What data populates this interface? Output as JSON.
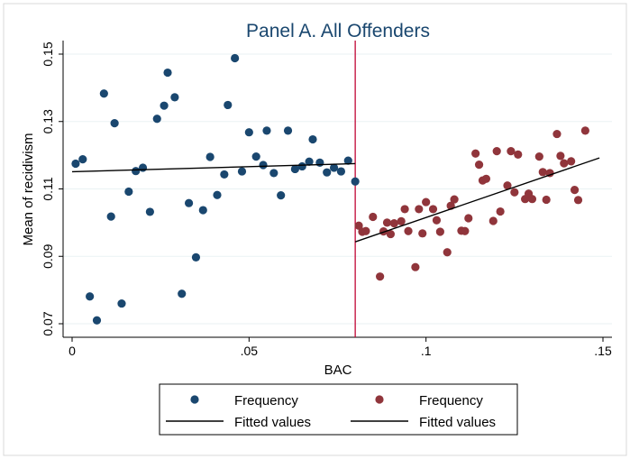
{
  "chart_data": {
    "type": "scatter",
    "title": "Panel A. All Offenders",
    "xlabel": "BAC",
    "ylabel": "Mean of recidivism",
    "xlim": [
      0,
      0.15
    ],
    "ylim": [
      0.07,
      0.15
    ],
    "x_ticks": [
      0,
      0.05,
      0.1,
      0.15
    ],
    "x_tick_labels": [
      "0",
      ".05",
      ".1",
      ".15"
    ],
    "y_ticks": [
      0.07,
      0.09,
      0.11,
      0.13,
      0.15
    ],
    "y_tick_labels": [
      "0.07",
      "0.09",
      "0.11",
      "0.13",
      "0.15"
    ],
    "threshold": 0.08,
    "threshold_color": "#c10534",
    "grid": true,
    "legend_position": "bottom",
    "series": [
      {
        "name": "Frequency",
        "kind": "scatter",
        "color": "#1a476f",
        "points": [
          [
            0.001,
            0.1175
          ],
          [
            0.003,
            0.1188
          ],
          [
            0.005,
            0.0781
          ],
          [
            0.007,
            0.071
          ],
          [
            0.009,
            0.1383
          ],
          [
            0.011,
            0.1018
          ],
          [
            0.012,
            0.1295
          ],
          [
            0.014,
            0.076
          ],
          [
            0.016,
            0.1092
          ],
          [
            0.018,
            0.1153
          ],
          [
            0.02,
            0.1163
          ],
          [
            0.022,
            0.1032
          ],
          [
            0.024,
            0.1308
          ],
          [
            0.026,
            0.1347
          ],
          [
            0.027,
            0.1445
          ],
          [
            0.029,
            0.1372
          ],
          [
            0.031,
            0.0789
          ],
          [
            0.033,
            0.1058
          ],
          [
            0.035,
            0.0897
          ],
          [
            0.037,
            0.1037
          ],
          [
            0.039,
            0.1195
          ],
          [
            0.041,
            0.1082
          ],
          [
            0.043,
            0.1143
          ],
          [
            0.044,
            0.1349
          ],
          [
            0.046,
            0.1488
          ],
          [
            0.048,
            0.1152
          ],
          [
            0.05,
            0.1268
          ],
          [
            0.052,
            0.1196
          ],
          [
            0.054,
            0.1171
          ],
          [
            0.055,
            0.1273
          ],
          [
            0.057,
            0.1147
          ],
          [
            0.059,
            0.1081
          ],
          [
            0.061,
            0.1273
          ],
          [
            0.063,
            0.1159
          ],
          [
            0.065,
            0.1167
          ],
          [
            0.067,
            0.1181
          ],
          [
            0.068,
            0.1247
          ],
          [
            0.07,
            0.1178
          ],
          [
            0.072,
            0.1149
          ],
          [
            0.074,
            0.1163
          ],
          [
            0.076,
            0.1152
          ],
          [
            0.078,
            0.1184
          ],
          [
            0.08,
            0.1122
          ]
        ]
      },
      {
        "name": "Fitted values",
        "kind": "line",
        "color": "#000000",
        "points": [
          [
            0.0,
            0.1151
          ],
          [
            0.08,
            0.1175
          ]
        ]
      },
      {
        "name": "Frequency",
        "kind": "scatter",
        "color": "#90353b",
        "points": [
          [
            0.081,
            0.0991
          ],
          [
            0.082,
            0.0973
          ],
          [
            0.083,
            0.0975
          ],
          [
            0.085,
            0.1017
          ],
          [
            0.087,
            0.084
          ],
          [
            0.088,
            0.0974
          ],
          [
            0.089,
            0.1
          ],
          [
            0.09,
            0.0966
          ],
          [
            0.091,
            0.0998
          ],
          [
            0.093,
            0.1004
          ],
          [
            0.094,
            0.104
          ],
          [
            0.095,
            0.0975
          ],
          [
            0.097,
            0.0868
          ],
          [
            0.098,
            0.104
          ],
          [
            0.099,
            0.0968
          ],
          [
            0.1,
            0.1061
          ],
          [
            0.102,
            0.104
          ],
          [
            0.103,
            0.1007
          ],
          [
            0.104,
            0.0973
          ],
          [
            0.106,
            0.0912
          ],
          [
            0.107,
            0.105
          ],
          [
            0.108,
            0.1069
          ],
          [
            0.11,
            0.0976
          ],
          [
            0.111,
            0.0975
          ],
          [
            0.112,
            0.1013
          ],
          [
            0.114,
            0.1205
          ],
          [
            0.115,
            0.1172
          ],
          [
            0.116,
            0.1125
          ],
          [
            0.117,
            0.113
          ],
          [
            0.119,
            0.1005
          ],
          [
            0.12,
            0.1212
          ],
          [
            0.121,
            0.1033
          ],
          [
            0.123,
            0.111
          ],
          [
            0.124,
            0.1212
          ],
          [
            0.125,
            0.109
          ],
          [
            0.126,
            0.1202
          ],
          [
            0.128,
            0.107
          ],
          [
            0.129,
            0.1086
          ],
          [
            0.13,
            0.107
          ],
          [
            0.132,
            0.1196
          ],
          [
            0.133,
            0.115
          ],
          [
            0.134,
            0.1068
          ],
          [
            0.135,
            0.1147
          ],
          [
            0.137,
            0.1263
          ],
          [
            0.138,
            0.1198
          ],
          [
            0.139,
            0.1176
          ],
          [
            0.141,
            0.1182
          ],
          [
            0.142,
            0.1097
          ],
          [
            0.143,
            0.1067
          ],
          [
            0.145,
            0.1273
          ]
        ]
      },
      {
        "name": "Fitted values",
        "kind": "line",
        "color": "#000000",
        "points": [
          [
            0.08,
            0.0943
          ],
          [
            0.149,
            0.1192
          ]
        ]
      }
    ]
  }
}
